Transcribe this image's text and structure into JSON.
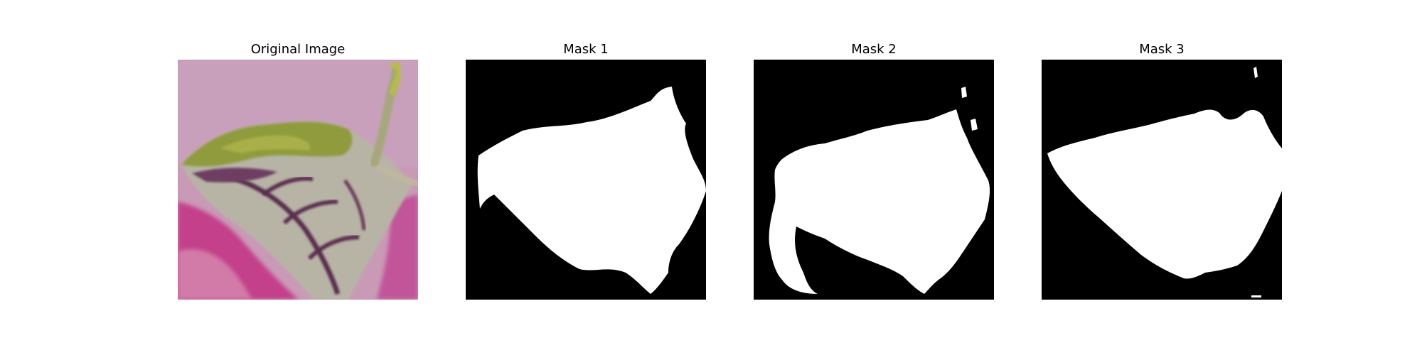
{
  "figure": {
    "panels": [
      {
        "title": "Original Image",
        "kind": "photo",
        "depicts": "leaf"
      },
      {
        "title": "Mask 1",
        "kind": "binary-mask"
      },
      {
        "title": "Mask 2",
        "kind": "binary-mask"
      },
      {
        "title": "Mask 3",
        "kind": "binary-mask"
      }
    ]
  },
  "colors": {
    "mask_background": "#000000",
    "mask_foreground": "#ffffff",
    "pink_background": "#c98fb0",
    "magenta": "#c73f87",
    "leaf_green": "#8c9a3a",
    "leaf_silver": "#b8b6aa"
  }
}
